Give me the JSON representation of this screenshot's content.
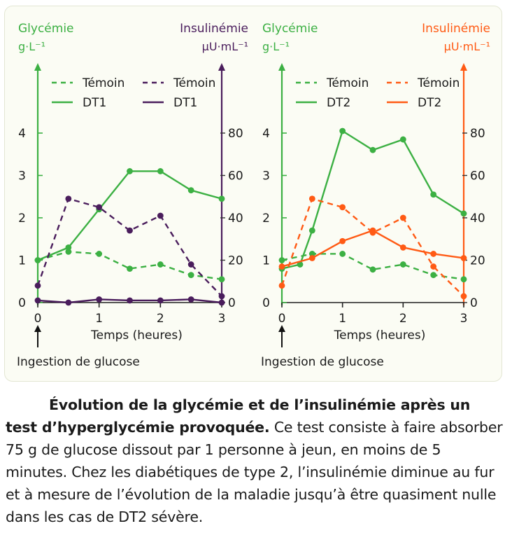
{
  "colors": {
    "green": "#3cb043",
    "purple": "#4a1d5c",
    "orange": "#ff5a14",
    "panel_bg": "#fbfcf4"
  },
  "chart_data": [
    {
      "type": "line",
      "left_axis": {
        "label": "Glycémie",
        "unit": "g·L⁻¹",
        "ticks": [
          "0",
          "1",
          "2",
          "3",
          "4"
        ],
        "ylim": [
          0,
          5.2
        ],
        "color": "#3cb043"
      },
      "right_axis": {
        "label": "Insulinémie",
        "unit": "μU·mL⁻¹",
        "ticks": [
          "0",
          "20",
          "40",
          "60",
          "80"
        ],
        "ylim": [
          0,
          104
        ],
        "color": "#4a1d5c"
      },
      "x_axis": {
        "label": "Temps (heures)",
        "ticks": [
          "0",
          "1",
          "2",
          "3"
        ],
        "xlim": [
          0,
          3
        ]
      },
      "annotation": "Ingestion de glucose",
      "legend": {
        "placement": "top",
        "entries": [
          "Témoin",
          "DT1",
          "Témoin",
          "DT1"
        ]
      },
      "series": [
        {
          "name": "Témoin",
          "axis": "left",
          "style": "dashed",
          "color": "#3cb043",
          "x": [
            0,
            0.5,
            1,
            1.5,
            2,
            2.5,
            3
          ],
          "y": [
            1.0,
            1.2,
            1.15,
            0.8,
            0.9,
            0.65,
            0.55
          ]
        },
        {
          "name": "DT1",
          "axis": "left",
          "style": "solid",
          "color": "#3cb043",
          "x": [
            0,
            0.5,
            1,
            1.5,
            2,
            2.5,
            3
          ],
          "y": [
            1.0,
            1.3,
            2.2,
            3.1,
            3.1,
            2.65,
            2.45
          ]
        },
        {
          "name": "Témoin",
          "axis": "right",
          "style": "dashed",
          "color": "#4a1d5c",
          "x": [
            0,
            0.5,
            1,
            1.5,
            2,
            2.5,
            3
          ],
          "y": [
            8,
            49,
            45,
            34,
            41,
            18,
            3
          ]
        },
        {
          "name": "DT1",
          "axis": "right",
          "style": "solid",
          "color": "#4a1d5c",
          "x": [
            0,
            0.5,
            1,
            1.5,
            2,
            2.5,
            3
          ],
          "y": [
            1,
            0,
            1.5,
            1,
            1,
            1.5,
            0
          ]
        }
      ]
    },
    {
      "type": "line",
      "left_axis": {
        "label": "Glycémie",
        "unit": "g·L⁻¹",
        "ticks": [
          "0",
          "1",
          "2",
          "3",
          "4"
        ],
        "ylim": [
          0,
          5.2
        ],
        "color": "#3cb043"
      },
      "right_axis": {
        "label": "Insulinémie",
        "unit": "μU·mL⁻¹",
        "ticks": [
          "0",
          "20",
          "40",
          "60",
          "80"
        ],
        "ylim": [
          0,
          104
        ],
        "color": "#ff5a14"
      },
      "x_axis": {
        "label": "Temps (heures)",
        "ticks": [
          "0",
          "1",
          "2",
          "3"
        ],
        "xlim": [
          0,
          3
        ]
      },
      "annotation": "Ingestion de glucose",
      "legend": {
        "placement": "top",
        "entries": [
          "Témoin",
          "DT2",
          "Témoin",
          "DT2"
        ]
      },
      "series": [
        {
          "name": "Témoin",
          "axis": "left",
          "style": "dashed",
          "color": "#3cb043",
          "x": [
            0,
            0.5,
            1,
            1.5,
            2,
            2.5,
            3
          ],
          "y": [
            1.0,
            1.15,
            1.15,
            0.78,
            0.9,
            0.65,
            0.55
          ]
        },
        {
          "name": "DT2",
          "axis": "left",
          "style": "solid",
          "color": "#3cb043",
          "x": [
            0,
            0.3,
            0.5,
            1,
            1.5,
            2,
            2.5,
            3
          ],
          "y": [
            0.8,
            0.9,
            1.7,
            4.05,
            3.6,
            3.85,
            2.55,
            2.1
          ]
        },
        {
          "name": "Témoin",
          "axis": "right",
          "style": "dashed",
          "color": "#ff5a14",
          "x": [
            0,
            0.5,
            1,
            1.5,
            2,
            2.5,
            3
          ],
          "y": [
            8,
            49,
            45,
            33,
            40,
            17,
            3
          ]
        },
        {
          "name": "DT2",
          "axis": "right",
          "style": "solid",
          "color": "#ff5a14",
          "x": [
            0,
            0.5,
            1,
            1.5,
            2,
            2.5,
            3
          ],
          "y": [
            17,
            21,
            29,
            34,
            26,
            23,
            21
          ]
        }
      ]
    }
  ],
  "caption": {
    "title": "Évolution de la glycémie et de l’insulinémie après un test d’hyperglycémie provoquée.",
    "body": "Ce test consiste à faire absorber 75 g de glucose dissout par 1 personne à jeun, en moins de 5 minutes. Chez les diabétiques de type 2, l’insulinémie diminue au fur et à mesure de l’évolution de la maladie jusqu’à être quasiment nulle dans les cas de DT2 sévère."
  }
}
